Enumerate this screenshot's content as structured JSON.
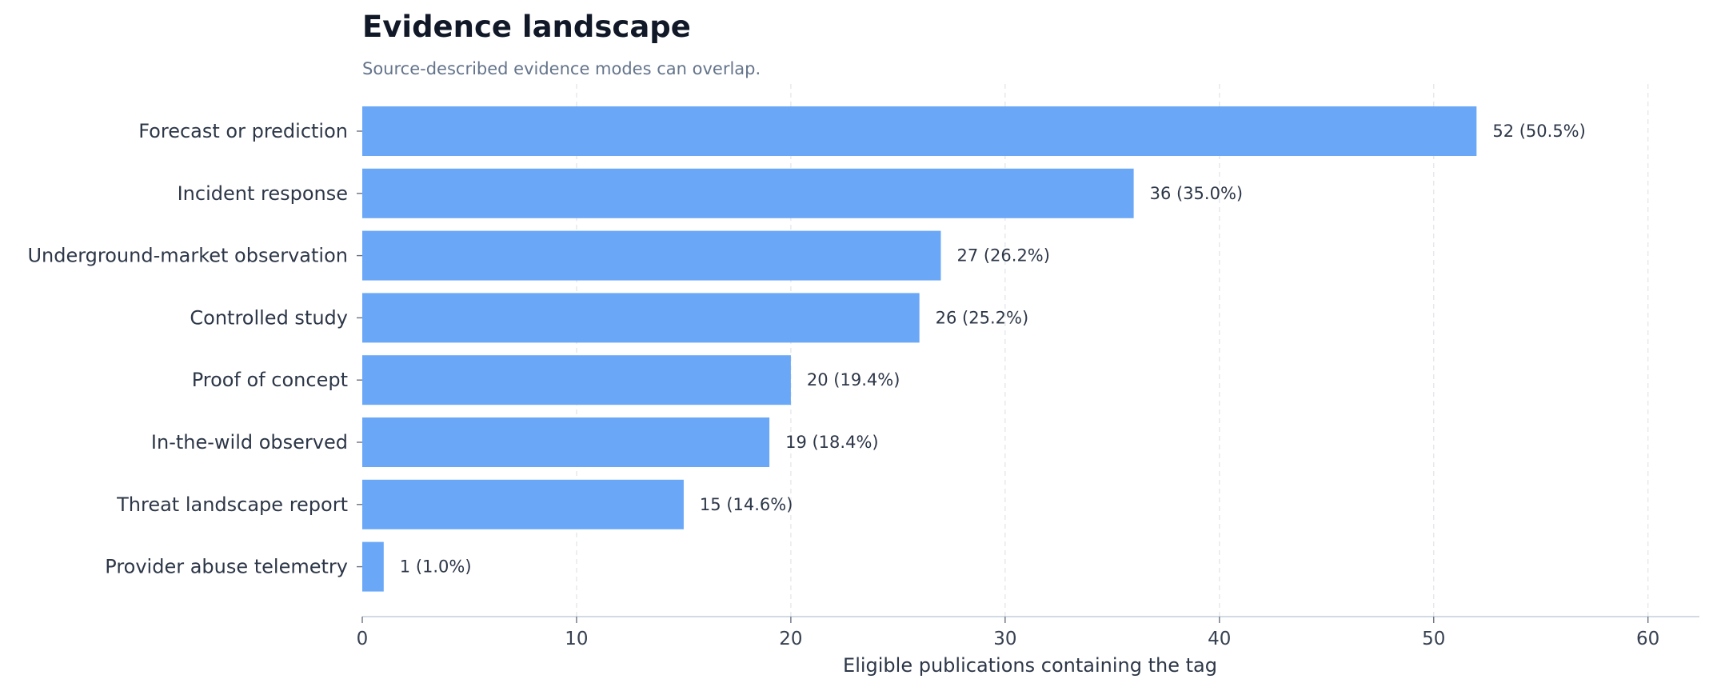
{
  "chart_data": {
    "type": "bar",
    "orientation": "horizontal",
    "title": "Evidence landscape",
    "subtitle": "Source-described evidence modes can overlap.",
    "xlabel": "Eligible publications containing the tag",
    "ylabel": "",
    "xlim": [
      0,
      62.4
    ],
    "xticks": [
      0,
      10,
      20,
      30,
      40,
      50,
      60
    ],
    "grid": "x-dashed",
    "bar_color": "#6aa8f7",
    "categories": [
      "Forecast or prediction",
      "Incident response",
      "Underground-market observation",
      "Controlled study",
      "Proof of concept",
      "In-the-wild observed",
      "Threat landscape report",
      "Provider abuse telemetry"
    ],
    "values": [
      52,
      36,
      27,
      26,
      20,
      19,
      15,
      1
    ],
    "value_labels": [
      "52  (50.5%)",
      "36  (35.0%)",
      "27  (26.2%)",
      "26  (25.2%)",
      "20  (19.4%)",
      "19  (18.4%)",
      "15  (14.6%)",
      "1  (1.0%)"
    ]
  }
}
